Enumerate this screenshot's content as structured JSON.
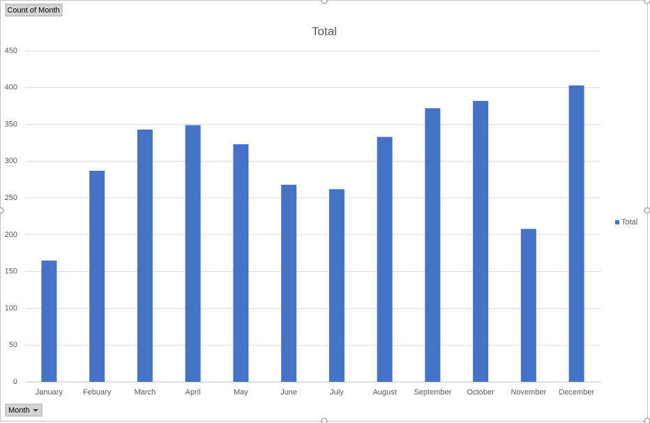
{
  "pivot": {
    "value_field": "Count of Month",
    "axis_field": "Month"
  },
  "chart_data": {
    "type": "bar",
    "title": "Total",
    "categories": [
      "January",
      "Febuary",
      "March",
      "April",
      "May",
      "June",
      "July",
      "August",
      "September",
      "October",
      "November",
      "December"
    ],
    "series": [
      {
        "name": "Total",
        "color": "#4472c4",
        "values": [
          165,
          287,
          343,
          349,
          323,
          268,
          262,
          333,
          372,
          382,
          208,
          403
        ]
      }
    ],
    "ylim": [
      0,
      450
    ],
    "yticks": [
      0,
      50,
      100,
      150,
      200,
      250,
      300,
      350,
      400,
      450
    ],
    "grid": true,
    "legend": "right"
  }
}
